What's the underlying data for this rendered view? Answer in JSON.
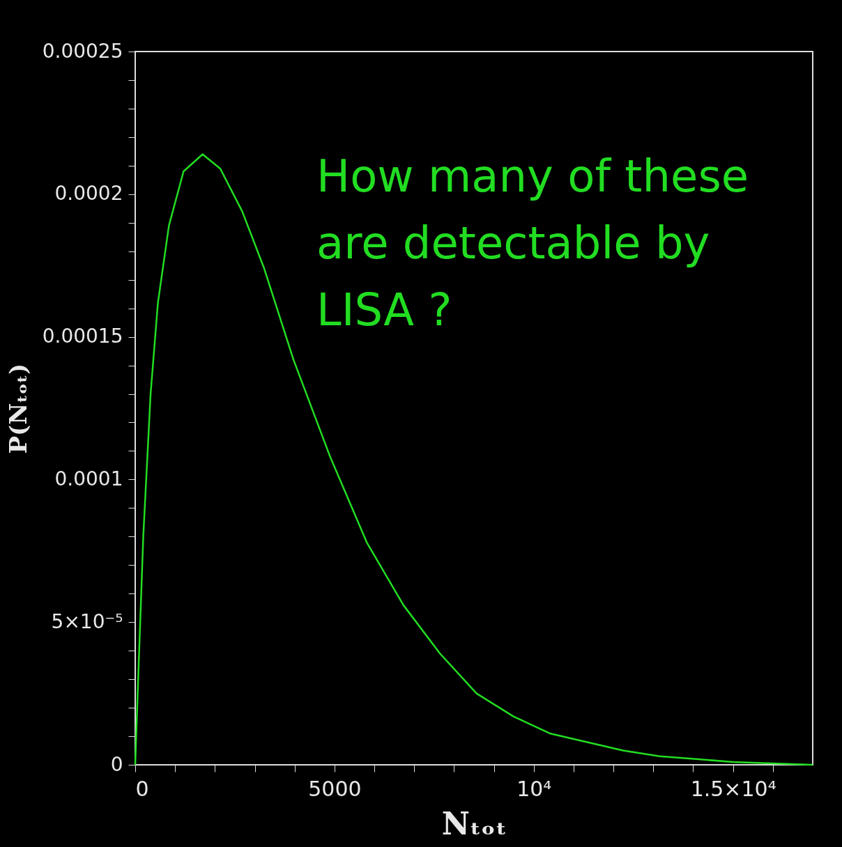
{
  "chart_data": {
    "type": "line",
    "xlabel": "Nₜₒₜ",
    "ylabel": "P(Nₜₒₜ)",
    "annotations": [
      "How many of these are detectable by LISA ?"
    ],
    "x": [
      0,
      74,
      202,
      386,
      570,
      846,
      1213,
      1691,
      2132,
      2684,
      3235,
      3971,
      4890,
      5809,
      6728,
      7647,
      8566,
      9485,
      10404,
      11324,
      12243,
      13162,
      14081,
      15000,
      17000
    ],
    "series": [
      {
        "color": "#22dd22",
        "values": [
          0,
          3e-05,
          8e-05,
          0.00013,
          0.000162,
          0.000189,
          0.000208,
          0.000214,
          0.000209,
          0.000194,
          0.000174,
          0.000142,
          0.000108,
          7.8e-05,
          5.6e-05,
          3.9e-05,
          2.5e-05,
          1.7e-05,
          1.1e-05,
          8e-06,
          5e-06,
          3e-06,
          2e-06,
          1e-06,
          0
        ]
      }
    ],
    "xlim": [
      0,
      17000
    ],
    "xticks": [
      0,
      {
        "value": 1000,
        "label": null
      },
      {
        "value": 2000,
        "label": null
      },
      {
        "value": 3000,
        "label": null
      },
      {
        "value": 4000,
        "label": null
      },
      5000,
      {
        "value": 6000,
        "label": null
      },
      {
        "value": 7000,
        "label": null
      },
      {
        "value": 8000,
        "label": null
      },
      {
        "value": 9000,
        "label": null
      },
      {
        "value": 10000,
        "label": "10⁴"
      },
      {
        "value": 11000,
        "label": null
      },
      {
        "value": 12000,
        "label": null
      },
      {
        "value": 13000,
        "label": null
      },
      {
        "value": 14000,
        "label": null
      },
      {
        "value": 15000,
        "label": "1.5×10⁴"
      },
      {
        "value": 16000,
        "label": null
      }
    ],
    "ylim": [
      0,
      0.00025
    ],
    "yticks": [
      0,
      {
        "value": 1e-05,
        "label": null
      },
      {
        "value": 2e-05,
        "label": null
      },
      {
        "value": 3e-05,
        "label": null
      },
      {
        "value": 4e-05,
        "label": null
      },
      {
        "value": 5e-05,
        "label": "5×10⁻⁵"
      },
      {
        "value": 6e-05,
        "label": null
      },
      {
        "value": 7e-05,
        "label": null
      },
      {
        "value": 8e-05,
        "label": null
      },
      {
        "value": 9e-05,
        "label": null
      },
      0.0001,
      {
        "value": 0.00011,
        "label": null
      },
      {
        "value": 0.00012,
        "label": null
      },
      {
        "value": 0.00013,
        "label": null
      },
      {
        "value": 0.00014,
        "label": null
      },
      0.00015,
      {
        "value": 0.00016,
        "label": null
      },
      {
        "value": 0.00017,
        "label": null
      },
      {
        "value": 0.00018,
        "label": null
      },
      {
        "value": 0.00019,
        "label": null
      },
      0.0002,
      {
        "value": 0.00021,
        "label": null
      },
      {
        "value": 0.00022,
        "label": null
      },
      {
        "value": 0.00023,
        "label": null
      },
      {
        "value": 0.00024,
        "label": null
      },
      0.00025
    ],
    "grid": false,
    "marker": "none",
    "line_style": "solid"
  }
}
